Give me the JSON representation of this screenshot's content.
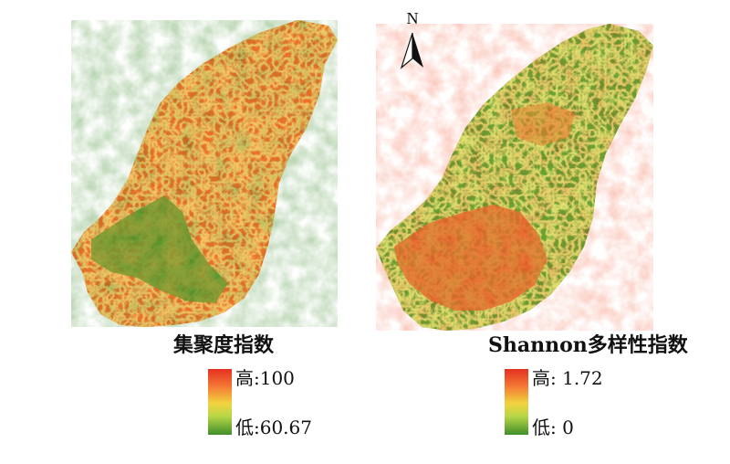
{
  "north_arrow": {
    "label": "N"
  },
  "maps": [
    {
      "title": "集聚度指数",
      "legend": {
        "high": "高:100",
        "low": "低:60.67"
      },
      "dominant_color": "#e9521f"
    },
    {
      "title": "Shannon多样性指数",
      "legend": {
        "high": "高: 1.72",
        "low": "低: 0"
      },
      "dominant_color": "#3e8f2b"
    }
  ],
  "colors": {
    "high": "#e52e21",
    "mid_high": "#f47d35",
    "mid": "#f2d33f",
    "mid_low": "#b8d648",
    "low": "#3f8e2a"
  }
}
